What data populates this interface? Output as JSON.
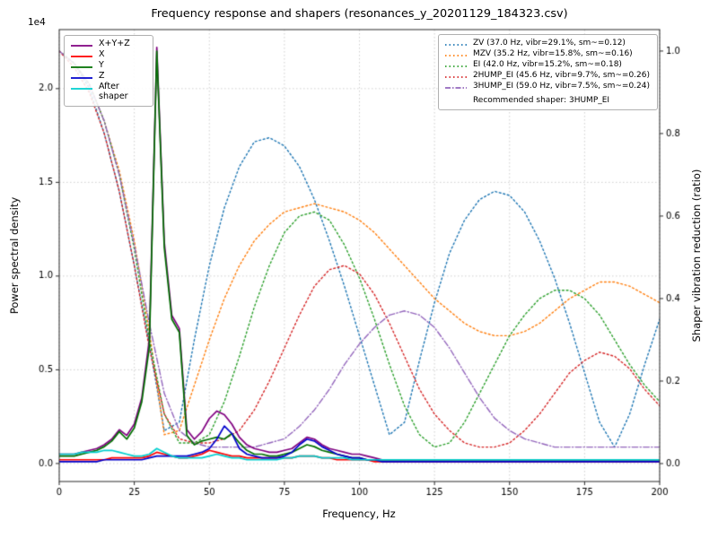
{
  "figure": {
    "title": "Frequency response and shapers (resonances_y_20201129_184323.csv)",
    "xlabel": "Frequency, Hz",
    "ylabel_left": "Power spectral density",
    "ylabel_right": "Shaper vibration reduction (ratio)",
    "offset_text": "1e4"
  },
  "legend_psd": {
    "items": [
      {
        "label": "X+Y+Z",
        "color": "#800080",
        "style": "solid"
      },
      {
        "label": "X",
        "color": "#ff0000",
        "style": "solid"
      },
      {
        "label": "Y",
        "color": "#007000",
        "style": "solid"
      },
      {
        "label": "Z",
        "color": "#0000cc",
        "style": "solid"
      },
      {
        "label": "After shaper",
        "color": "#00cfcf",
        "style": "solid"
      }
    ]
  },
  "legend_shapers": {
    "items": [
      {
        "label": "ZV (37.0 Hz, vibr=29.1%, sm~=0.12)",
        "color": "#1f77b4",
        "style": "dotted"
      },
      {
        "label": "MZV (35.2 Hz, vibr=15.8%, sm~=0.16)",
        "color": "#ff7f0e",
        "style": "dotted"
      },
      {
        "label": "EI (42.0 Hz, vibr=15.2%, sm~=0.18)",
        "color": "#2ca02c",
        "style": "dotted"
      },
      {
        "label": "2HUMP_EI (45.6 Hz, vibr=9.7%, sm~=0.26)",
        "color": "#d62728",
        "style": "dotted"
      },
      {
        "label": "3HUMP_EI (59.0 Hz, vibr=7.5%, sm~=0.24)",
        "color": "#9467bd",
        "style": "dashdot"
      }
    ],
    "note": "Recommended shaper: 3HUMP_EI"
  },
  "chart_data": {
    "type": "line",
    "title": "Frequency response and shapers (resonances_y_20201129_184323.csv)",
    "xlabel": "Frequency, Hz",
    "grid": true,
    "xlim": [
      0,
      200
    ],
    "xticks": [
      0,
      25,
      50,
      75,
      100,
      125,
      150,
      175,
      200
    ],
    "xtick_labels": [
      "0",
      "25",
      "50",
      "75",
      "100",
      "125",
      "150",
      "175",
      "200"
    ],
    "left_axis": {
      "label": "Power spectral density",
      "units": "1e4",
      "ylim": [
        -0.096,
        2.315
      ],
      "ticks": [
        0,
        0.5,
        1.0,
        1.5,
        2.0
      ],
      "tick_labels": [
        "0.0",
        "0.5",
        "1.0",
        "1.5",
        "2.0"
      ]
    },
    "right_axis": {
      "label": "Shaper vibration reduction (ratio)",
      "ylim": [
        -0.0435,
        1.052
      ],
      "ticks": [
        0,
        0.2,
        0.4,
        0.6,
        0.8,
        1.0
      ],
      "tick_labels": [
        "0.0",
        "0.2",
        "0.4",
        "0.6",
        "0.8",
        "1.0"
      ]
    },
    "psd_x": [
      0,
      2.5,
      5,
      7.5,
      10,
      12.5,
      15,
      17.5,
      20,
      22.5,
      25,
      27.5,
      30,
      32.5,
      35,
      37.5,
      40,
      42.5,
      45,
      47.5,
      50,
      52.5,
      55,
      57.5,
      60,
      62.5,
      65,
      67.5,
      70,
      72.5,
      75,
      77.5,
      80,
      82.5,
      85,
      87.5,
      90,
      92.5,
      95,
      97.5,
      100,
      102.5,
      105,
      107.5,
      110,
      120,
      130,
      140,
      150,
      160,
      170,
      180,
      190,
      200
    ],
    "psd_series": [
      {
        "name": "X+Y+Z",
        "color": "#800080",
        "style": "solid",
        "axis": "left",
        "values": [
          0.05,
          0.05,
          0.05,
          0.06,
          0.07,
          0.08,
          0.1,
          0.13,
          0.18,
          0.15,
          0.21,
          0.35,
          0.66,
          2.22,
          1.18,
          0.79,
          0.72,
          0.18,
          0.13,
          0.17,
          0.24,
          0.28,
          0.26,
          0.21,
          0.14,
          0.1,
          0.08,
          0.07,
          0.06,
          0.06,
          0.07,
          0.08,
          0.11,
          0.14,
          0.13,
          0.1,
          0.08,
          0.07,
          0.06,
          0.05,
          0.05,
          0.04,
          0.03,
          0.02,
          0.02,
          0.02,
          0.02,
          0.02,
          0.02,
          0.02,
          0.02,
          0.02,
          0.02,
          0.02
        ]
      },
      {
        "name": "X",
        "color": "#ff0000",
        "style": "solid",
        "axis": "left",
        "values": [
          0.02,
          0.02,
          0.02,
          0.02,
          0.02,
          0.02,
          0.02,
          0.03,
          0.03,
          0.03,
          0.03,
          0.03,
          0.04,
          0.06,
          0.05,
          0.04,
          0.03,
          0.03,
          0.04,
          0.05,
          0.07,
          0.06,
          0.05,
          0.04,
          0.04,
          0.03,
          0.03,
          0.03,
          0.03,
          0.03,
          0.03,
          0.03,
          0.04,
          0.04,
          0.04,
          0.03,
          0.03,
          0.02,
          0.02,
          0.02,
          0.02,
          0.02,
          0.01,
          0.01,
          0.01,
          0.01,
          0.01,
          0.01,
          0.01,
          0.01,
          0.01,
          0.01,
          0.01,
          0.01
        ]
      },
      {
        "name": "Y",
        "color": "#007000",
        "style": "solid",
        "axis": "left",
        "values": [
          0.04,
          0.04,
          0.04,
          0.05,
          0.06,
          0.07,
          0.09,
          0.12,
          0.17,
          0.13,
          0.19,
          0.33,
          0.62,
          2.2,
          1.15,
          0.77,
          0.7,
          0.15,
          0.1,
          0.12,
          0.13,
          0.14,
          0.13,
          0.16,
          0.11,
          0.07,
          0.05,
          0.05,
          0.04,
          0.04,
          0.05,
          0.06,
          0.08,
          0.1,
          0.09,
          0.07,
          0.06,
          0.05,
          0.04,
          0.03,
          0.03,
          0.02,
          0.02,
          0.02,
          0.02,
          0.02,
          0.02,
          0.02,
          0.02,
          0.02,
          0.02,
          0.02,
          0.02,
          0.02
        ]
      },
      {
        "name": "Z",
        "color": "#0000cc",
        "style": "solid",
        "axis": "left",
        "values": [
          0.01,
          0.01,
          0.01,
          0.01,
          0.01,
          0.01,
          0.02,
          0.02,
          0.02,
          0.02,
          0.02,
          0.02,
          0.03,
          0.04,
          0.04,
          0.04,
          0.04,
          0.04,
          0.05,
          0.06,
          0.08,
          0.13,
          0.2,
          0.16,
          0.08,
          0.05,
          0.04,
          0.03,
          0.03,
          0.03,
          0.04,
          0.06,
          0.1,
          0.13,
          0.12,
          0.09,
          0.07,
          0.05,
          0.04,
          0.03,
          0.03,
          0.02,
          0.02,
          0.01,
          0.01,
          0.01,
          0.01,
          0.01,
          0.01,
          0.01,
          0.01,
          0.01,
          0.01,
          0.01
        ]
      },
      {
        "name": "After shaper",
        "color": "#00cfcf",
        "style": "solid",
        "axis": "left",
        "values": [
          0.05,
          0.05,
          0.05,
          0.06,
          0.06,
          0.06,
          0.07,
          0.07,
          0.06,
          0.05,
          0.04,
          0.04,
          0.05,
          0.08,
          0.06,
          0.04,
          0.03,
          0.03,
          0.03,
          0.03,
          0.04,
          0.05,
          0.04,
          0.03,
          0.03,
          0.02,
          0.02,
          0.02,
          0.02,
          0.02,
          0.03,
          0.03,
          0.04,
          0.04,
          0.04,
          0.03,
          0.03,
          0.03,
          0.03,
          0.02,
          0.02,
          0.02,
          0.02,
          0.02,
          0.02,
          0.02,
          0.02,
          0.02,
          0.02,
          0.02,
          0.02,
          0.02,
          0.02,
          0.02
        ]
      }
    ],
    "shaper_x": [
      0,
      5,
      10,
      15,
      20,
      25,
      30,
      35,
      40,
      45,
      50,
      55,
      60,
      65,
      70,
      75,
      80,
      85,
      90,
      95,
      100,
      105,
      110,
      115,
      120,
      125,
      130,
      135,
      140,
      145,
      150,
      155,
      160,
      165,
      170,
      175,
      180,
      185,
      190,
      195,
      200
    ],
    "shaper_series": [
      {
        "name": "ZV",
        "color": "#1f77b4",
        "style": "dotted",
        "axis": "right",
        "values": [
          1.0,
          0.97,
          0.91,
          0.8,
          0.66,
          0.48,
          0.29,
          0.08,
          0.1,
          0.3,
          0.48,
          0.62,
          0.72,
          0.78,
          0.79,
          0.77,
          0.72,
          0.64,
          0.54,
          0.43,
          0.31,
          0.19,
          0.07,
          0.1,
          0.25,
          0.39,
          0.51,
          0.59,
          0.64,
          0.66,
          0.65,
          0.61,
          0.54,
          0.45,
          0.34,
          0.22,
          0.1,
          0.04,
          0.12,
          0.24,
          0.35
        ]
      },
      {
        "name": "MZV",
        "color": "#ff7f0e",
        "style": "dotted",
        "axis": "right",
        "values": [
          1.0,
          0.97,
          0.92,
          0.83,
          0.71,
          0.54,
          0.32,
          0.07,
          0.08,
          0.19,
          0.3,
          0.4,
          0.48,
          0.54,
          0.58,
          0.61,
          0.62,
          0.63,
          0.62,
          0.61,
          0.59,
          0.56,
          0.52,
          0.48,
          0.44,
          0.4,
          0.37,
          0.34,
          0.32,
          0.31,
          0.31,
          0.32,
          0.34,
          0.37,
          0.4,
          0.42,
          0.44,
          0.44,
          0.43,
          0.41,
          0.39
        ]
      },
      {
        "name": "EI",
        "color": "#2ca02c",
        "style": "dotted",
        "axis": "right",
        "values": [
          1.0,
          0.97,
          0.92,
          0.83,
          0.7,
          0.52,
          0.3,
          0.12,
          0.05,
          0.05,
          0.07,
          0.15,
          0.26,
          0.38,
          0.48,
          0.56,
          0.6,
          0.61,
          0.59,
          0.53,
          0.45,
          0.35,
          0.24,
          0.14,
          0.07,
          0.04,
          0.05,
          0.1,
          0.17,
          0.24,
          0.31,
          0.36,
          0.4,
          0.42,
          0.42,
          0.4,
          0.36,
          0.3,
          0.24,
          0.19,
          0.15
        ]
      },
      {
        "name": "2HUMP_EI",
        "color": "#d62728",
        "style": "dotted",
        "axis": "right",
        "values": [
          1.0,
          0.96,
          0.9,
          0.8,
          0.66,
          0.48,
          0.28,
          0.12,
          0.06,
          0.05,
          0.05,
          0.06,
          0.08,
          0.13,
          0.2,
          0.28,
          0.36,
          0.43,
          0.47,
          0.48,
          0.46,
          0.41,
          0.34,
          0.26,
          0.18,
          0.12,
          0.08,
          0.05,
          0.04,
          0.04,
          0.05,
          0.08,
          0.12,
          0.17,
          0.22,
          0.25,
          0.27,
          0.26,
          0.23,
          0.18,
          0.14
        ]
      },
      {
        "name": "3HUMP_EI",
        "color": "#9467bd",
        "style": "dashdot",
        "axis": "right",
        "values": [
          1.0,
          0.97,
          0.92,
          0.83,
          0.7,
          0.53,
          0.34,
          0.17,
          0.08,
          0.05,
          0.04,
          0.04,
          0.04,
          0.04,
          0.05,
          0.06,
          0.09,
          0.13,
          0.18,
          0.24,
          0.29,
          0.33,
          0.36,
          0.37,
          0.36,
          0.33,
          0.28,
          0.22,
          0.16,
          0.11,
          0.08,
          0.06,
          0.05,
          0.04,
          0.04,
          0.04,
          0.04,
          0.04,
          0.04,
          0.04,
          0.04
        ]
      }
    ]
  }
}
